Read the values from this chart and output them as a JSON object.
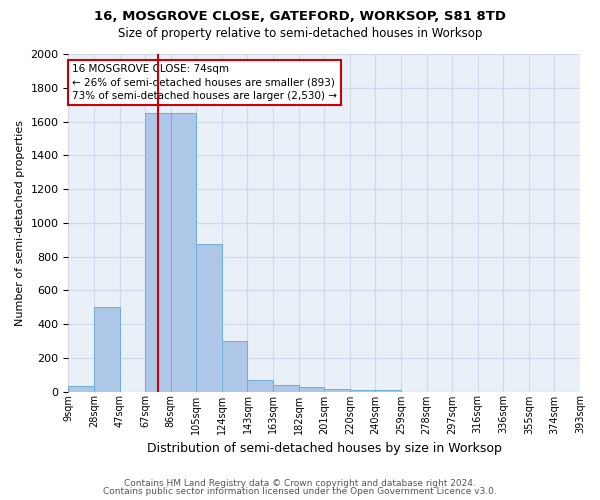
{
  "title1": "16, MOSGROVE CLOSE, GATEFORD, WORKSOP, S81 8TD",
  "title2": "Size of property relative to semi-detached houses in Worksop",
  "xlabel": "Distribution of semi-detached houses by size in Worksop",
  "ylabel": "Number of semi-detached properties",
  "xtick_labels": [
    "9sqm",
    "28sqm",
    "47sqm",
    "67sqm",
    "86sqm",
    "105sqm",
    "124sqm",
    "143sqm",
    "163sqm",
    "182sqm",
    "201sqm",
    "220sqm",
    "240sqm",
    "259sqm",
    "278sqm",
    "297sqm",
    "316sqm",
    "336sqm",
    "355sqm",
    "374sqm",
    "393sqm"
  ],
  "bar_heights": [
    35,
    500,
    0,
    1650,
    1650,
    875,
    300,
    70,
    40,
    25,
    15,
    10,
    10,
    0,
    0,
    0,
    0,
    0,
    0,
    0
  ],
  "bar_color": "#aec6e8",
  "bar_edgecolor": "#6baed6",
  "property_size_bin": 3.5,
  "vline_color": "#cc0000",
  "annotation_line1": "16 MOSGROVE CLOSE: 74sqm",
  "annotation_line2": "← 26% of semi-detached houses are smaller (893)",
  "annotation_line3": "73% of semi-detached houses are larger (2,530) →",
  "annotation_box_edgecolor": "#cc0000",
  "ylim": [
    0,
    2000
  ],
  "yticks": [
    0,
    200,
    400,
    600,
    800,
    1000,
    1200,
    1400,
    1600,
    1800,
    2000
  ],
  "footer1": "Contains HM Land Registry data © Crown copyright and database right 2024.",
  "footer2": "Contains public sector information licensed under the Open Government Licence v3.0.",
  "grid_color": "#d0d8e8",
  "background_color": "#eaf0f8"
}
